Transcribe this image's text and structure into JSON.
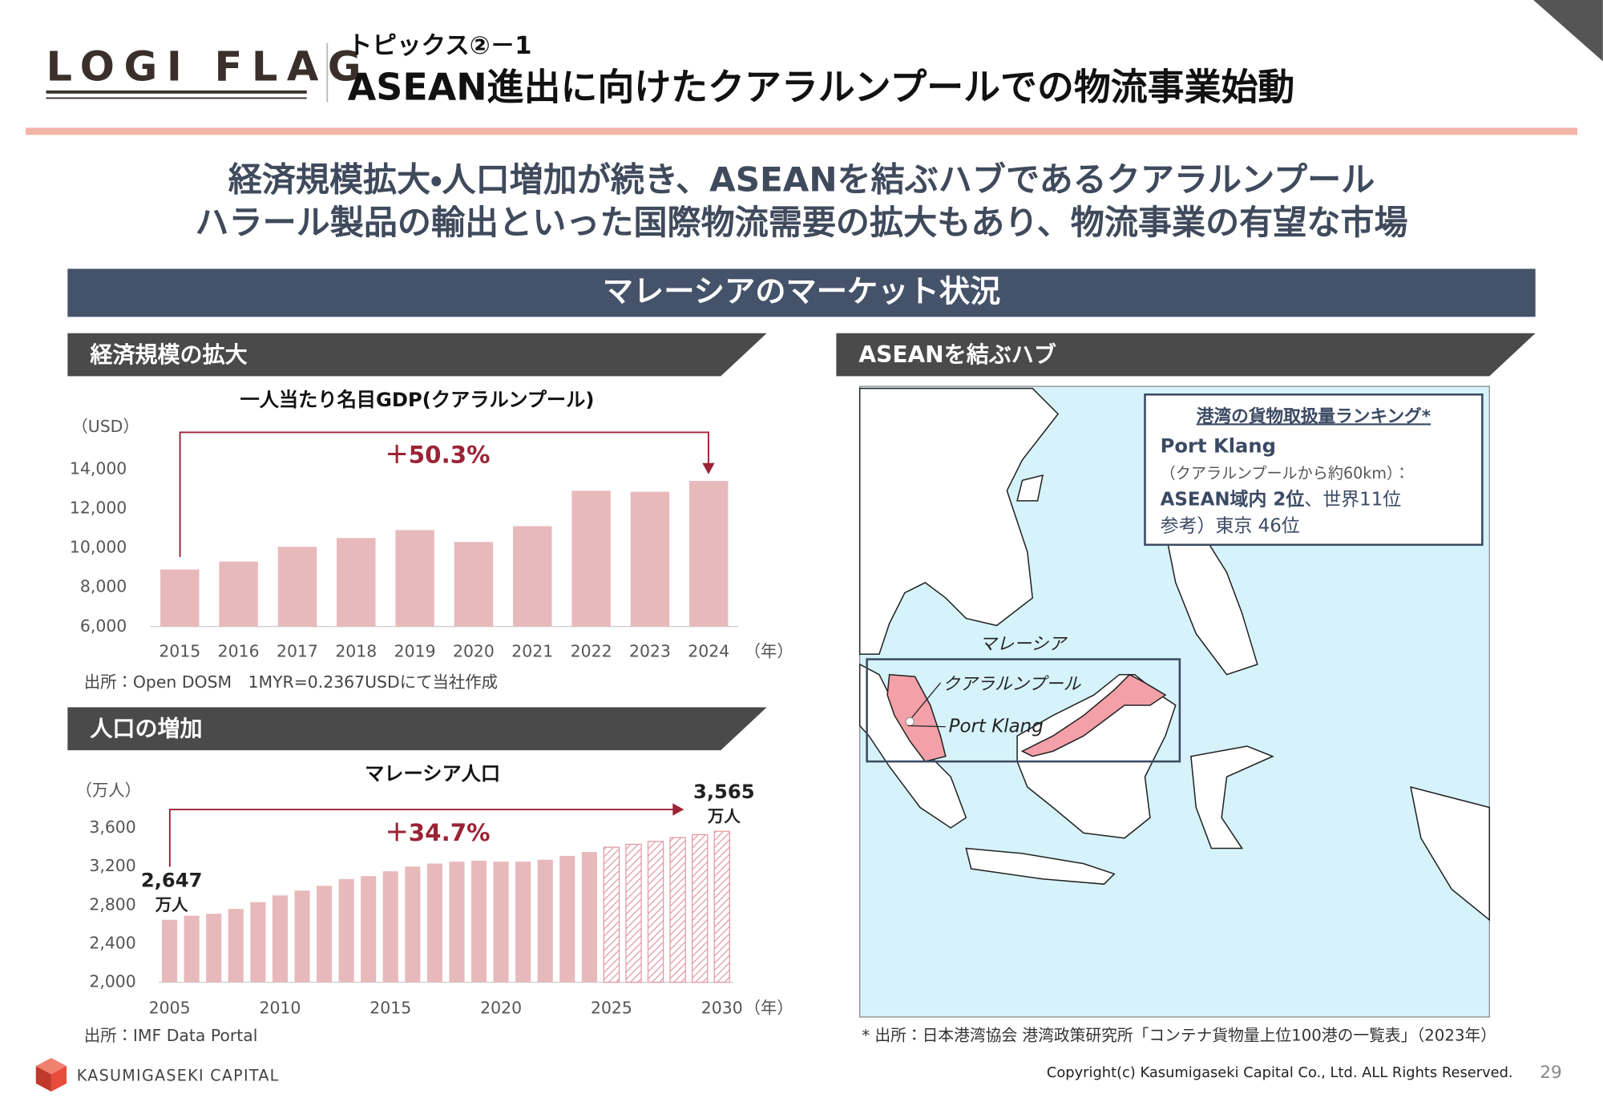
{
  "header": {
    "logo": "LOGI FLAG",
    "topic": "トピックス②－1",
    "title": "ASEAN進出に向けたクアラルンプールでの物流事業始動"
  },
  "lead": [
    "経済規模拡大・人口増加が続き、ASEANを結ぶハブであるクアラルンプール",
    "ハラール製品の輸出といった国際物流需要の拡大もあり、物流事業の有望な市場"
  ],
  "banner": "マレーシアのマーケット状況",
  "sections": {
    "economy": "経済規模の拡大",
    "hub": "ASEANを結ぶハブ",
    "population": "人口の増加"
  },
  "chart_data": [
    {
      "type": "bar",
      "title": "一人当たり名目GDP(クアラルンプール)",
      "y_unit_label": "（USD）",
      "x_unit_label": "（年）",
      "categories": [
        "2015",
        "2016",
        "2017",
        "2018",
        "2019",
        "2020",
        "2021",
        "2022",
        "2023",
        "2024"
      ],
      "values": [
        8900,
        9300,
        10050,
        10500,
        10900,
        10300,
        11100,
        12900,
        12850,
        13400
      ],
      "color": "#e8b9bb",
      "ylim": [
        6000,
        14000
      ],
      "yticks": [
        {
          "value": 6000,
          "label": "6,000"
        },
        {
          "value": 8000,
          "label": "8,000"
        },
        {
          "value": 10000,
          "label": "10,000"
        },
        {
          "value": 12000,
          "label": "12,000"
        },
        {
          "value": 14000,
          "label": "14,000"
        }
      ],
      "grid": false,
      "annotation": "＋50.3%",
      "annotation_color": "#9b2335",
      "source": "出所：Open DOSM　1MYR=0.2367USDにて当社作成"
    },
    {
      "type": "bar",
      "title": "マレーシア人口",
      "y_unit_label": "（万人）",
      "x_unit_label": "（年）",
      "categories": [
        "2005",
        null,
        null,
        null,
        null,
        "2010",
        null,
        null,
        null,
        null,
        "2015",
        null,
        null,
        null,
        null,
        "2020",
        null,
        null,
        null,
        null,
        "2025",
        null,
        null,
        null,
        null,
        "2030"
      ],
      "values": [
        2647,
        2690,
        2710,
        2760,
        2830,
        2900,
        2950,
        3000,
        3070,
        3100,
        3150,
        3200,
        3230,
        3250,
        3260,
        3250,
        3250,
        3270,
        3310,
        3350,
        3400,
        3430,
        3460,
        3500,
        3530,
        3565
      ],
      "value_labels": [
        "2,647",
        null,
        null,
        null,
        null,
        null,
        null,
        null,
        null,
        null,
        null,
        null,
        null,
        null,
        null,
        null,
        null,
        null,
        null,
        null,
        null,
        null,
        null,
        null,
        null,
        "3,565"
      ],
      "value_label_unit": "万人",
      "hatched": [
        false,
        false,
        false,
        false,
        false,
        false,
        false,
        false,
        false,
        false,
        false,
        false,
        false,
        false,
        false,
        false,
        false,
        false,
        false,
        false,
        true,
        true,
        true,
        true,
        true,
        true
      ],
      "color": "#e8b9bb",
      "ylim": [
        2000,
        3600
      ],
      "yticks": [
        {
          "value": 2000,
          "label": "2,000"
        },
        {
          "value": 2400,
          "label": "2,400"
        },
        {
          "value": 2800,
          "label": "2,800"
        },
        {
          "value": 3200,
          "label": "3,200"
        },
        {
          "value": 3600,
          "label": "3,600"
        }
      ],
      "grid": false,
      "annotation": "＋34.7%",
      "annotation_color": "#9b2335",
      "source": "出所：IMF Data Portal"
    }
  ],
  "map": {
    "ranking_title": "港湾の貨物取扱量ランキング*",
    "port": "Port Klang",
    "distance": "（クアラルンプールから約60km）：",
    "rank_asean": "ASEAN域内 2位",
    "rank_world": "、世界11位",
    "reference": "参考）東京 46位",
    "label_country": "マレーシア",
    "label_city": "クアラルンプール",
    "label_port": "Port Klang",
    "source": "* 出所：日本港湾協会 港湾政策研究所「コンテナ貨物量上位100港の一覧表」（2023年）"
  },
  "footer": {
    "company": "KASUMIGASEKI CAPITAL",
    "copyright": "Copyright(c) Kasumigaseki Capital Co., Ltd. ALL Rights Reserved.",
    "page": "29"
  }
}
